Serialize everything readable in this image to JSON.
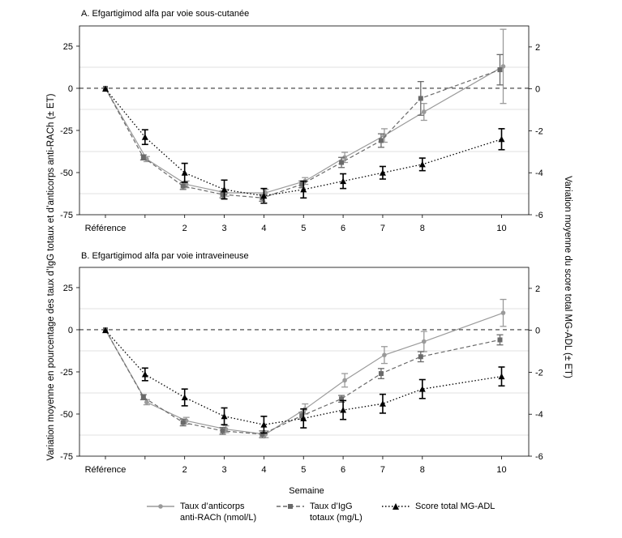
{
  "figure": {
    "y_axis_left_label": "Variation moyenne en pourcentage des taux d’IgG totaux et d’anticorps anti-RACh (± ET)",
    "y_axis_right_label": "Variation moyenne du score total MG-ADL (± ET)",
    "x_axis_label": "Semaine"
  },
  "legend": [
    {
      "label": "Taux d’anticorps\nanti-RACh (nmol/L)",
      "color": "#9a9a9a",
      "style": "solid",
      "marker": "circle"
    },
    {
      "label": "Taux d’IgG\ntotaux (mg/L)",
      "color": "#6a6a6a",
      "style": "dashed",
      "marker": "square"
    },
    {
      "label": "Score total MG-ADL",
      "color": "#000000",
      "style": "dotted",
      "marker": "triangle"
    }
  ],
  "chart_data": [
    {
      "type": "line",
      "title": "A. Efgartigimod alfa par voie sous-cutanée",
      "x": [
        0,
        1,
        2,
        3,
        4,
        5,
        6,
        7,
        8,
        10
      ],
      "x_tick_labels": [
        "Référence",
        "",
        "2",
        "3",
        "4",
        "5",
        "6",
        "7",
        "8",
        "10"
      ],
      "ylim_left": [
        -75,
        37
      ],
      "yticks_left": [
        25,
        0,
        -25,
        -50,
        -75
      ],
      "ylim_right": [
        -6,
        3
      ],
      "yticks_right": [
        2,
        0,
        -2,
        -4,
        -6
      ],
      "reference_line": 0,
      "series": [
        {
          "name": "Taux d’anticorps anti-RACh (nmol/L)",
          "axis": "left",
          "values": [
            0,
            -42,
            -57,
            -62,
            -62,
            -55,
            -41,
            -28,
            -14,
            13
          ],
          "errors": [
            0,
            1.5,
            2,
            2,
            2,
            2,
            3,
            4,
            5,
            22
          ]
        },
        {
          "name": "Taux d’IgG totaux (mg/L)",
          "axis": "left",
          "values": [
            0,
            -41,
            -58,
            -63,
            -65,
            -57,
            -44,
            -31,
            -6,
            11
          ],
          "errors": [
            0,
            1.5,
            2,
            2,
            2,
            2,
            3,
            4,
            10,
            9
          ]
        },
        {
          "name": "Score total MG-ADL",
          "axis": "right",
          "values": [
            0,
            -2.3,
            -4.0,
            -4.8,
            -5.1,
            -4.8,
            -4.4,
            -4.0,
            -3.6,
            -2.4
          ],
          "errors": [
            0,
            0.35,
            0.45,
            0.45,
            0.35,
            0.4,
            0.35,
            0.3,
            0.3,
            0.5
          ]
        }
      ]
    },
    {
      "type": "line",
      "title": "B. Efgartigimod alfa par voie intraveineuse",
      "x": [
        0,
        1,
        2,
        3,
        4,
        5,
        6,
        7,
        8,
        10
      ],
      "x_tick_labels": [
        "Référence",
        "",
        "2",
        "3",
        "4",
        "5",
        "6",
        "7",
        "8",
        "10"
      ],
      "ylim_left": [
        -75,
        37
      ],
      "yticks_left": [
        25,
        0,
        -25,
        -50,
        -75
      ],
      "ylim_right": [
        -6,
        3
      ],
      "yticks_right": [
        2,
        0,
        -2,
        -4,
        -6
      ],
      "reference_line": 0,
      "series": [
        {
          "name": "Taux d’anticorps anti-RACh (nmol/L)",
          "axis": "left",
          "values": [
            0,
            -43,
            -54,
            -59,
            -62,
            -47,
            -30,
            -15,
            -7,
            10
          ],
          "errors": [
            0,
            1.5,
            2,
            2,
            2,
            3,
            4,
            5,
            6,
            8
          ]
        },
        {
          "name": "Taux d’IgG totaux (mg/L)",
          "axis": "left",
          "values": [
            0,
            -40,
            -55,
            -60,
            -62,
            -51,
            -41,
            -26,
            -16,
            -6
          ],
          "errors": [
            0,
            1.5,
            2,
            2,
            2,
            2,
            2,
            3,
            3,
            3
          ]
        },
        {
          "name": "Score total MG-ADL",
          "axis": "right",
          "values": [
            0,
            -2.1,
            -3.2,
            -4.1,
            -4.5,
            -4.2,
            -3.8,
            -3.5,
            -2.8,
            -2.2
          ],
          "errors": [
            0,
            0.3,
            0.4,
            0.4,
            0.4,
            0.45,
            0.45,
            0.45,
            0.45,
            0.45
          ]
        }
      ]
    }
  ]
}
